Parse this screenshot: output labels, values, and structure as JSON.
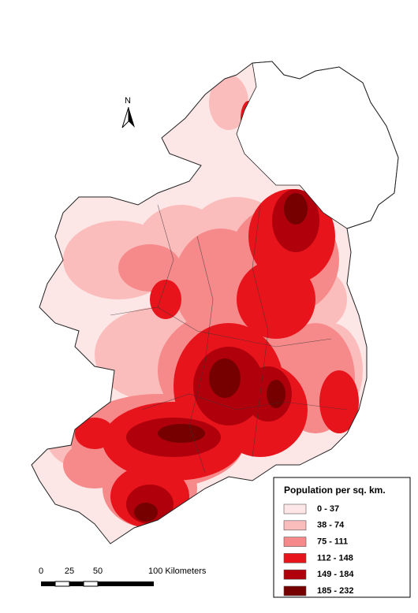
{
  "map": {
    "north_label": "N",
    "scale_bar": {
      "labels": [
        "0",
        "25",
        "50",
        "100 Kilometers"
      ]
    },
    "legend": {
      "title": "Population per sq. km.",
      "items": [
        {
          "label": "0 - 37",
          "color": "#fde6e6"
        },
        {
          "label": "38 - 74",
          "color": "#fbbcbc"
        },
        {
          "label": "75 - 111",
          "color": "#f68a8a"
        },
        {
          "label": "112 - 148",
          "color": "#e8141c"
        },
        {
          "label": "149 - 184",
          "color": "#b0000c"
        },
        {
          "label": "185 - 232",
          "color": "#760000"
        }
      ]
    }
  }
}
